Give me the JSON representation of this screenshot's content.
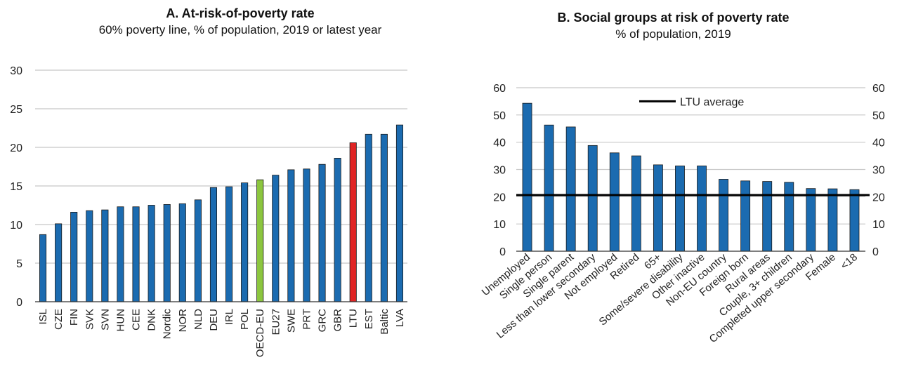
{
  "chart_data": [
    {
      "type": "bar",
      "title": "A. At-risk-of-poverty rate",
      "subtitle": "60% poverty line, % of population, 2019 or latest year",
      "xlabel": "",
      "ylabel": "",
      "ylim": [
        0,
        30
      ],
      "yticks": [
        0,
        5,
        10,
        15,
        20,
        25,
        30
      ],
      "grid": true,
      "categories": [
        "ISL",
        "CZE",
        "FIN",
        "SVK",
        "SVN",
        "HUN",
        "CEE",
        "DNK",
        "Nordic",
        "NOR",
        "NLD",
        "DEU",
        "IRL",
        "POL",
        "OECD-EU",
        "EU27",
        "SWE",
        "PRT",
        "GRC",
        "GBR",
        "LTU",
        "EST",
        "Baltic",
        "LVA"
      ],
      "values": [
        8.7,
        10.1,
        11.6,
        11.8,
        11.9,
        12.3,
        12.3,
        12.5,
        12.6,
        12.7,
        13.2,
        14.8,
        14.9,
        15.4,
        15.8,
        16.4,
        17.1,
        17.2,
        17.8,
        18.6,
        20.6,
        21.7,
        21.7,
        22.9
      ],
      "colors": {
        "default": "#1b6bb0",
        "highlight": {
          "OECD-EU": "#8cc63f",
          "LTU": "#e02424"
        }
      }
    },
    {
      "type": "bar",
      "title": "B. Social groups at risk of poverty rate",
      "subtitle": "% of population, 2019",
      "xlabel": "",
      "ylabel": "",
      "ylim": [
        0,
        60
      ],
      "yticks": [
        0,
        10,
        20,
        30,
        40,
        50,
        60
      ],
      "grid": true,
      "secondary_axis": true,
      "categories": [
        "Unemployed",
        "Single person",
        "Single parent",
        "Less than lower secondary",
        "Not employed",
        "Retired",
        "65+",
        "Some/severe disability",
        "Other inactive",
        "Non-EU country",
        "Foreign born",
        "Rural areas",
        "Couple, 3+ children",
        "Completed upper secondary",
        "Female",
        "<18"
      ],
      "values": [
        54.3,
        46.3,
        45.6,
        38.8,
        36.1,
        35.0,
        31.7,
        31.3,
        31.3,
        26.4,
        25.8,
        25.6,
        25.3,
        23.0,
        22.9,
        22.6
      ],
      "reference_line": {
        "label": "LTU average",
        "value": 20.6
      },
      "colors": {
        "default": "#1b6bb0",
        "reference": "#000000"
      }
    }
  ]
}
